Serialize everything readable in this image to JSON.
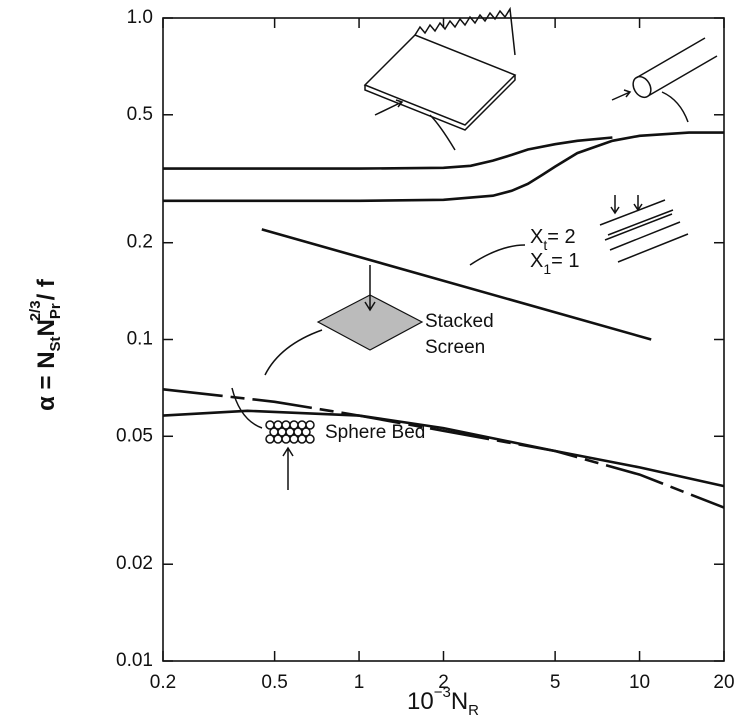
{
  "chart_data": {
    "type": "line",
    "xscale": "log",
    "yscale": "log",
    "xlim": [
      0.2,
      20
    ],
    "ylim": [
      0.01,
      1
    ],
    "xticks": [
      0.2,
      0.5,
      1,
      2,
      5,
      10,
      20
    ],
    "yticks": [
      0.01,
      0.02,
      0.05,
      0.1,
      0.2,
      0.5,
      {
        "value": 1,
        "label": "1.0"
      }
    ],
    "xlabel": [
      "10",
      "−3",
      "N",
      "R"
    ],
    "ylabel": [
      "α = N",
      "St",
      "N",
      "Pr",
      "2/3",
      "/ f"
    ],
    "series": [
      {
        "color": "#111111",
        "dashed": false,
        "x": [
          0.2,
          1,
          2,
          2.5,
          3,
          3.5,
          4,
          5,
          6,
          8
        ],
        "values": [
          0.34,
          0.34,
          0.342,
          0.347,
          0.36,
          0.375,
          0.39,
          0.405,
          0.415,
          0.425
        ]
      },
      {
        "color": "#111111",
        "dashed": false,
        "x": [
          0.2,
          1,
          2,
          3,
          3.5,
          4,
          4.5,
          5,
          6,
          8,
          10,
          15,
          20
        ],
        "values": [
          0.27,
          0.27,
          0.272,
          0.28,
          0.29,
          0.305,
          0.325,
          0.345,
          0.38,
          0.415,
          0.43,
          0.44,
          0.44
        ]
      },
      {
        "color": "#111111",
        "dashed": false,
        "x": [
          0.45,
          11
        ],
        "values": [
          0.22,
          0.1
        ]
      },
      {
        "color": "#111111",
        "dashed": true,
        "x": [
          0.2,
          0.5,
          1,
          2,
          5,
          10,
          20
        ],
        "values": [
          0.07,
          0.064,
          0.058,
          0.052,
          0.045,
          0.038,
          0.03
        ]
      },
      {
        "color": "#111111",
        "dashed": false,
        "x": [
          0.2,
          0.4,
          1,
          2,
          5,
          10,
          20
        ],
        "values": [
          0.058,
          0.06,
          0.058,
          0.053,
          0.045,
          0.04,
          0.035
        ]
      }
    ],
    "annotations": [
      "Stacked",
      "Screen",
      "Sphere Bed"
    ],
    "tube_labels": [
      [
        "X",
        "t",
        "= 2"
      ],
      [
        "X",
        "1",
        "= 1"
      ]
    ]
  }
}
